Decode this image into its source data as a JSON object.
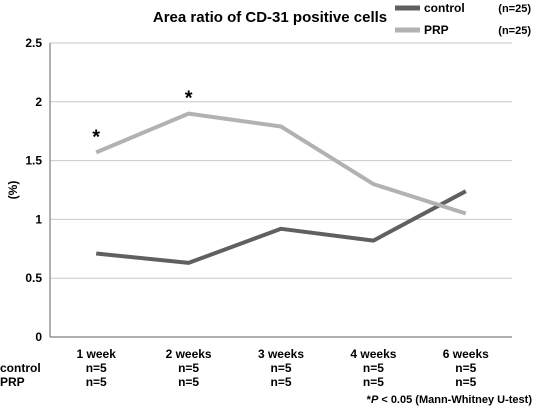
{
  "chart_data": {
    "type": "line",
    "title": "Area ratio of CD-31 positive cells",
    "ylabel": "(%)",
    "xlabel": "",
    "ylim": [
      0,
      2.5
    ],
    "yticks": [
      "0",
      "0.5",
      "1",
      "1.5",
      "2",
      "2.5"
    ],
    "categories": [
      "1 week",
      "2 weeks",
      "3 weeks",
      "4 weeks",
      "6 weeks"
    ],
    "series": [
      {
        "name": "control",
        "n_label": "(n=25)",
        "color": "#606060",
        "values": [
          0.71,
          0.63,
          0.92,
          0.82,
          1.24
        ]
      },
      {
        "name": "PRP",
        "n_label": "(n=25)",
        "color": "#b2b2b2",
        "values": [
          1.57,
          1.9,
          1.79,
          1.3,
          1.05
        ]
      }
    ],
    "grid": true,
    "legend_position": "top-right",
    "significance": {
      "marker": "*",
      "series": "PRP",
      "category_indices": [
        0,
        1
      ]
    },
    "n_table": {
      "rows": [
        {
          "label": "control",
          "values": [
            "n=5",
            "n=5",
            "n=5",
            "n=5",
            "n=5"
          ]
        },
        {
          "label": "PRP",
          "values": [
            "n=5",
            "n=5",
            "n=5",
            "n=5",
            "n=5"
          ]
        }
      ]
    },
    "footnote": {
      "prefix": "*",
      "p_italic": "P",
      "rest": " < 0.05 (Mann-Whitney U-test)"
    }
  }
}
